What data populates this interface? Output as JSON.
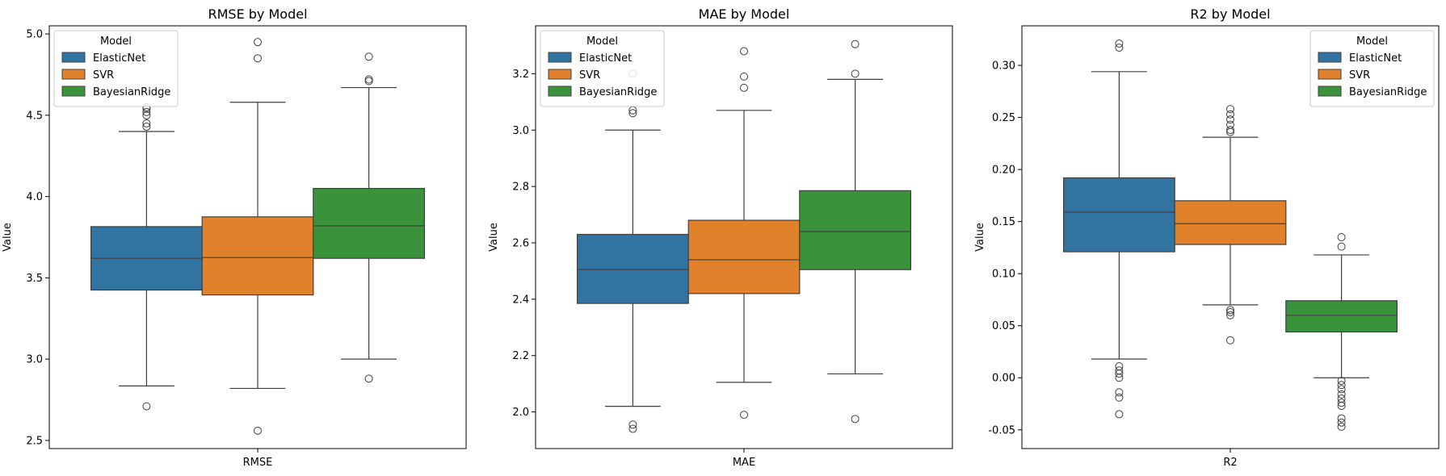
{
  "legend_title": "Model",
  "colors": {
    "ElasticNet": "#3274a1",
    "SVR": "#e1812c",
    "BayesianRidge": "#3a923a"
  },
  "chart_data": [
    {
      "type": "box",
      "title": "RMSE by Model",
      "xlabel": "",
      "ylabel": "Value",
      "category": "RMSE",
      "ylim": [
        2.45,
        5.05
      ],
      "yticks": [
        2.5,
        3.0,
        3.5,
        4.0,
        4.5,
        5.0
      ],
      "tick_format": 1,
      "legend_position": "upper-left",
      "grid": false,
      "series": [
        {
          "name": "ElasticNet",
          "whisker_low": 2.835,
          "q1": 3.425,
          "median": 3.62,
          "q3": 3.815,
          "whisker_high": 4.4,
          "outliers": [
            2.71,
            4.43,
            4.45,
            4.5,
            4.52,
            4.54,
            4.55
          ]
        },
        {
          "name": "SVR",
          "whisker_low": 2.82,
          "q1": 3.395,
          "median": 3.625,
          "q3": 3.875,
          "whisker_high": 4.58,
          "outliers": [
            2.56,
            4.85,
            4.95
          ]
        },
        {
          "name": "BayesianRidge",
          "whisker_low": 3.0,
          "q1": 3.62,
          "median": 3.82,
          "q3": 4.05,
          "whisker_high": 4.67,
          "outliers": [
            2.88,
            4.71,
            4.72,
            4.86
          ]
        }
      ]
    },
    {
      "type": "box",
      "title": "MAE by Model",
      "xlabel": "",
      "ylabel": "Value",
      "category": "MAE",
      "ylim": [
        1.87,
        3.37
      ],
      "yticks": [
        2.0,
        2.2,
        2.4,
        2.6,
        2.8,
        3.0,
        3.2
      ],
      "tick_format": 1,
      "legend_position": "upper-left",
      "grid": false,
      "series": [
        {
          "name": "ElasticNet",
          "whisker_low": 2.02,
          "q1": 2.385,
          "median": 2.505,
          "q3": 2.63,
          "whisker_high": 3.0,
          "outliers": [
            1.94,
            1.955,
            3.06,
            3.07,
            3.2
          ]
        },
        {
          "name": "SVR",
          "whisker_low": 2.105,
          "q1": 2.42,
          "median": 2.54,
          "q3": 2.68,
          "whisker_high": 3.07,
          "outliers": [
            1.99,
            3.15,
            3.19,
            3.28
          ]
        },
        {
          "name": "BayesianRidge",
          "whisker_low": 2.135,
          "q1": 2.505,
          "median": 2.64,
          "q3": 2.785,
          "whisker_high": 3.18,
          "outliers": [
            1.975,
            3.2,
            3.305
          ]
        }
      ]
    },
    {
      "type": "box",
      "title": "R2 by Model",
      "xlabel": "",
      "ylabel": "Value",
      "category": "R2",
      "ylim": [
        -0.068,
        0.338
      ],
      "yticks": [
        -0.05,
        0.0,
        0.05,
        0.1,
        0.15,
        0.2,
        0.25,
        0.3
      ],
      "tick_format": 2,
      "legend_position": "upper-right",
      "grid": false,
      "series": [
        {
          "name": "ElasticNet",
          "whisker_low": 0.018,
          "q1": 0.121,
          "median": 0.159,
          "q3": 0.192,
          "whisker_high": 0.294,
          "outliers": [
            -0.035,
            -0.019,
            -0.014,
            0.0,
            0.004,
            0.007,
            0.011,
            0.317,
            0.321
          ]
        },
        {
          "name": "SVR",
          "whisker_low": 0.07,
          "q1": 0.128,
          "median": 0.148,
          "q3": 0.17,
          "whisker_high": 0.231,
          "outliers": [
            0.036,
            0.06,
            0.063,
            0.065,
            0.236,
            0.238,
            0.243,
            0.248,
            0.253,
            0.258
          ]
        },
        {
          "name": "BayesianRidge",
          "whisker_low": 0.0,
          "q1": 0.044,
          "median": 0.06,
          "q3": 0.074,
          "whisker_high": 0.118,
          "outliers": [
            -0.047,
            -0.043,
            -0.039,
            -0.027,
            -0.024,
            -0.02,
            -0.016,
            -0.011,
            -0.007,
            -0.003,
            0.126,
            0.135
          ]
        }
      ]
    }
  ]
}
